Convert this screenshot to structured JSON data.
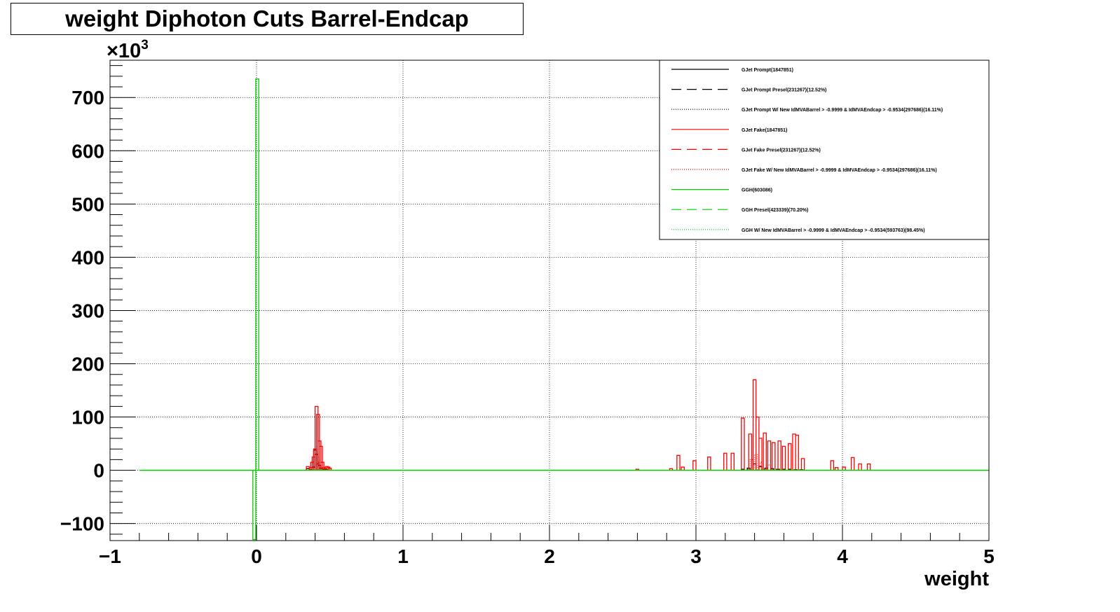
{
  "chart_data": {
    "type": "line",
    "title": "weight Diphoton Cuts Barrel-Endcap",
    "xlabel": "weight",
    "ylabel": "",
    "y_multiplier": "×10",
    "y_multiplier_exp": "3",
    "xlim": [
      -1,
      5
    ],
    "ylim": [
      -132,
      770
    ],
    "x_ticks": [
      -1,
      0,
      1,
      2,
      3,
      4,
      5
    ],
    "x_tick_labels": [
      "−1",
      "0",
      "1",
      "2",
      "3",
      "4",
      "5"
    ],
    "y_ticks": [
      -100,
      0,
      100,
      200,
      300,
      400,
      500,
      600,
      700
    ],
    "y_tick_labels": [
      "−100",
      "0",
      "100",
      "200",
      "300",
      "400",
      "500",
      "600",
      "700"
    ],
    "grid": true,
    "legend_position": "top-right",
    "colors": {
      "black": "#000000",
      "red": "#ff0000",
      "green": "#00cc00"
    },
    "series": [
      {
        "name": "GJet Prompt(1847851)",
        "color": "#000000",
        "style": "solid",
        "points": [
          [
            0.35,
            3
          ],
          [
            0.37,
            1
          ],
          [
            0.39,
            6
          ],
          [
            0.4,
            38
          ],
          [
            0.41,
            30
          ],
          [
            0.42,
            12
          ],
          [
            0.43,
            9
          ],
          [
            0.44,
            4
          ],
          [
            0.46,
            2
          ],
          [
            0.48,
            1
          ],
          [
            3.32,
            2
          ],
          [
            3.36,
            4
          ],
          [
            3.4,
            12
          ],
          [
            3.44,
            7
          ],
          [
            3.48,
            4
          ],
          [
            3.52,
            3
          ],
          [
            3.56,
            2
          ],
          [
            3.6,
            2
          ],
          [
            3.64,
            2
          ],
          [
            3.68,
            1
          ],
          [
            3.72,
            1
          ]
        ]
      },
      {
        "name": "GJet Prompt Presel(231267)(12.52%)",
        "color": "#000000",
        "style": "dashed",
        "points": []
      },
      {
        "name": "GJet Prompt W/ New IdMVABarrel > -0.9999 & IdMVAEndcap > -0.9534(297686)(16.11%)",
        "color": "#000000",
        "style": "dotted",
        "points": []
      },
      {
        "name": "GJet Fake(1847851)",
        "color": "#ff0000",
        "style": "solid",
        "points": [
          [
            0.35,
            7
          ],
          [
            0.37,
            5
          ],
          [
            0.38,
            15
          ],
          [
            0.39,
            25
          ],
          [
            0.4,
            40
          ],
          [
            0.41,
            120
          ],
          [
            0.42,
            105
          ],
          [
            0.43,
            55
          ],
          [
            0.44,
            45
          ],
          [
            0.45,
            15
          ],
          [
            0.46,
            5
          ],
          [
            0.47,
            3
          ],
          [
            0.48,
            7
          ],
          [
            0.49,
            6
          ],
          [
            0.5,
            4
          ],
          [
            2.6,
            2
          ],
          [
            2.83,
            3
          ],
          [
            2.88,
            28
          ],
          [
            2.91,
            6
          ],
          [
            2.99,
            18
          ],
          [
            3.09,
            25
          ],
          [
            3.2,
            32
          ],
          [
            3.25,
            32
          ],
          [
            3.32,
            98
          ],
          [
            3.37,
            68
          ],
          [
            3.4,
            170
          ],
          [
            3.42,
            100
          ],
          [
            3.44,
            60
          ],
          [
            3.47,
            70
          ],
          [
            3.5,
            55
          ],
          [
            3.53,
            52
          ],
          [
            3.57,
            55
          ],
          [
            3.6,
            45
          ],
          [
            3.64,
            50
          ],
          [
            3.67,
            68
          ],
          [
            3.69,
            66
          ],
          [
            3.73,
            22
          ],
          [
            3.93,
            18
          ],
          [
            3.96,
            5
          ],
          [
            4.01,
            6
          ],
          [
            4.07,
            24
          ],
          [
            4.12,
            12
          ],
          [
            4.18,
            12
          ]
        ]
      },
      {
        "name": "GJet Fake Presel(231267)(12.52%)",
        "color": "#ff0000",
        "style": "dashed",
        "points": []
      },
      {
        "name": "GJet Fake W/ New IdMVABarrel > -0.9999 & IdMVAEndcap > -0.9534(297686)(16.11%)",
        "color": "#ff0000",
        "style": "dotted",
        "points": [
          [
            0.4,
            30
          ],
          [
            0.41,
            45
          ],
          [
            0.42,
            25
          ],
          [
            0.43,
            15
          ],
          [
            3.38,
            20
          ],
          [
            3.41,
            30
          ],
          [
            3.45,
            15
          ],
          [
            3.5,
            10
          ]
        ]
      },
      {
        "name": "GGH(603086)",
        "color": "#00cc00",
        "style": "solid",
        "points": [
          [
            -0.015,
            -130
          ],
          [
            0.005,
            735
          ]
        ]
      },
      {
        "name": "GGH Presel(423339)(70.20%)",
        "color": "#00cc00",
        "style": "dashed",
        "points": []
      },
      {
        "name": "GGH W/ New IdMVABarrel > -0.9999 & IdMVAEndcap > -0.9534(593763)(98.45%)",
        "color": "#00cc00",
        "style": "dotted",
        "points": []
      }
    ]
  }
}
